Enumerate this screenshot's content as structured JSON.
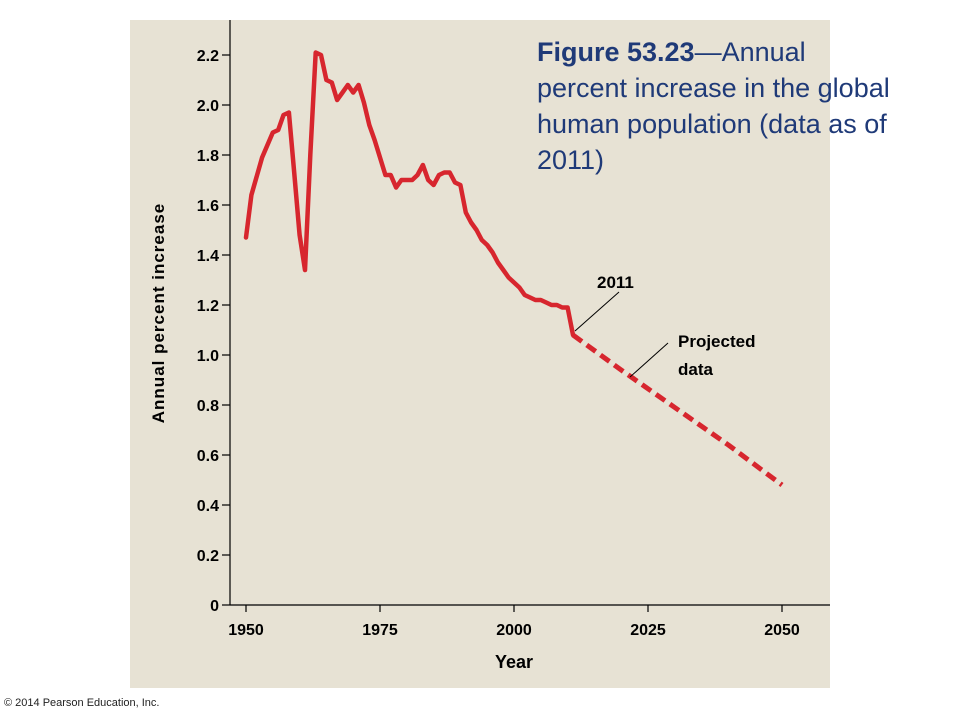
{
  "copyright": "© 2014 Pearson Education, Inc.",
  "title": {
    "figure_label": "Figure 53.23",
    "dash": "—",
    "text": "Annual percent increase in the global human population (data as of 2011)"
  },
  "colors": {
    "plot_background": "#e7e2d4",
    "series_line": "#d7262e",
    "title_text": "#1f3a78",
    "axis": "#000000",
    "annotation_line": "#000000"
  },
  "annotations": {
    "year_2011": "2011",
    "projected_line1": "Projected",
    "projected_line2": "data"
  },
  "chart_data": {
    "type": "line",
    "xlabel": "Year",
    "ylabel": "Annual percent increase",
    "xlim": [
      1947,
      2055
    ],
    "ylim": [
      0,
      2.35
    ],
    "x_ticks": [
      1950,
      1975,
      2000,
      2025,
      2050
    ],
    "x_tick_labels": [
      "1950",
      "1975",
      "2000",
      "2025",
      "2050"
    ],
    "y_ticks": [
      0,
      0.2,
      0.4,
      0.6,
      0.8,
      1.0,
      1.2,
      1.4,
      1.6,
      1.8,
      2.0,
      2.2
    ],
    "y_tick_labels": [
      "0",
      "0.2",
      "0.4",
      "0.6",
      "0.8",
      "1.0",
      "1.2",
      "1.4",
      "1.6",
      "1.8",
      "2.0",
      "2.2"
    ],
    "grid": false,
    "series": [
      {
        "style": "solid",
        "x": [
          1950,
          1951,
          1953,
          1955,
          1956,
          1957,
          1958,
          1959,
          1960,
          1961,
          1962,
          1963,
          1964,
          1965,
          1966,
          1967,
          1968,
          1969,
          1970,
          1971,
          1972,
          1973,
          1974,
          1975,
          1976,
          1977,
          1978,
          1979,
          1980,
          1981,
          1982,
          1983,
          1984,
          1985,
          1986,
          1987,
          1988,
          1989,
          1990,
          1991,
          1992,
          1993,
          1994,
          1995,
          1996,
          1997,
          1998,
          1999,
          2000,
          2001,
          2002,
          2003,
          2004,
          2005,
          2006,
          2007,
          2008,
          2009,
          2010,
          2011
        ],
        "values": [
          1.47,
          1.64,
          1.79,
          1.89,
          1.9,
          1.96,
          1.97,
          1.73,
          1.48,
          1.34,
          1.8,
          2.21,
          2.2,
          2.1,
          2.09,
          2.02,
          2.05,
          2.08,
          2.05,
          2.08,
          2.01,
          1.92,
          1.86,
          1.79,
          1.72,
          1.72,
          1.67,
          1.7,
          1.7,
          1.7,
          1.72,
          1.76,
          1.7,
          1.68,
          1.72,
          1.73,
          1.73,
          1.69,
          1.68,
          1.57,
          1.53,
          1.5,
          1.46,
          1.44,
          1.41,
          1.37,
          1.34,
          1.31,
          1.29,
          1.27,
          1.24,
          1.23,
          1.22,
          1.22,
          1.21,
          1.2,
          1.2,
          1.19,
          1.19,
          1.08
        ]
      },
      {
        "style": "dashed",
        "x": [
          2011,
          2020,
          2030,
          2040,
          2050
        ],
        "values": [
          1.08,
          0.94,
          0.79,
          0.64,
          0.48
        ]
      }
    ]
  }
}
